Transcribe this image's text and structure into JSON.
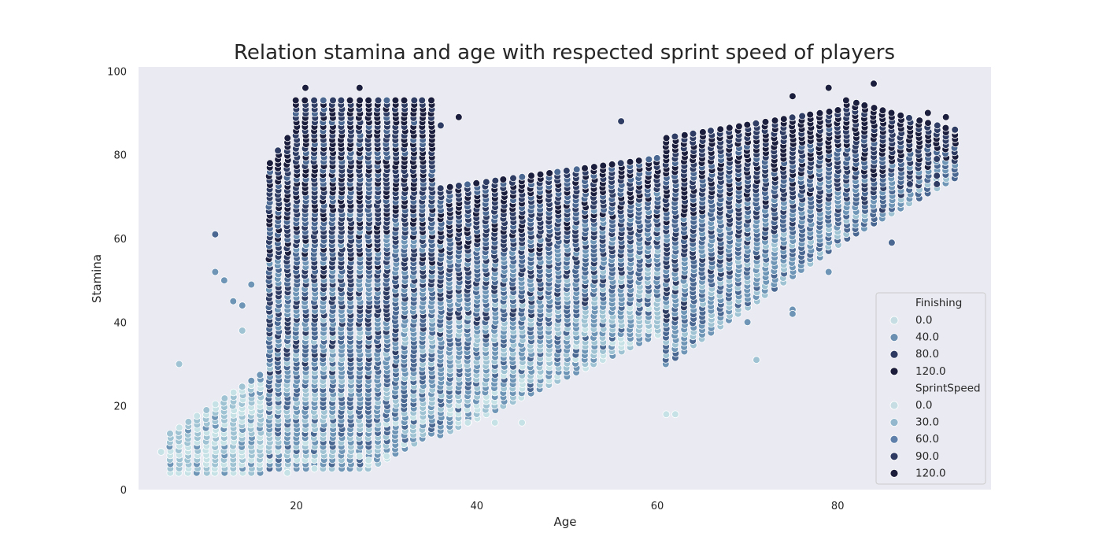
{
  "chart_data": {
    "type": "scatter",
    "title": "Relation stamina and age with respected sprint speed of players",
    "xlabel": "Age",
    "ylabel": "Stamina",
    "xlim": [
      2.5,
      97
    ],
    "ylim": [
      0,
      101
    ],
    "xticks": [
      20,
      40,
      60,
      80
    ],
    "yticks": [
      0,
      20,
      40,
      60,
      80,
      100
    ],
    "grid": false,
    "background": "#eaeaf2",
    "hue": "SprintSpeed",
    "size": "Finishing",
    "palette": [
      "#c7e2e6",
      "#9fc3d3",
      "#6f95b6",
      "#4a6892",
      "#2f3d64",
      "#1c1e3d"
    ],
    "legend": {
      "placement": "lower-right",
      "size_title": "Finishing",
      "size_entries": [
        {
          "label": "0.0",
          "color": "#c6dee3"
        },
        {
          "label": "40.0",
          "color": "#6b8fb0"
        },
        {
          "label": "80.0",
          "color": "#2e3a62"
        },
        {
          "label": "120.0",
          "color": "#1c1d3a"
        }
      ],
      "hue_title": "SprintSpeed",
      "hue_entries": [
        {
          "label": "0.0",
          "color": "#c6dee3"
        },
        {
          "label": "30.0",
          "color": "#93b7cc"
        },
        {
          "label": "60.0",
          "color": "#5f80aa"
        },
        {
          "label": "90.0",
          "color": "#2e3a62"
        },
        {
          "label": "120.0",
          "color": "#1c1d3a"
        }
      ]
    },
    "groups": [
      {
        "age_from": 6,
        "age_to": 16,
        "stamina_lo": 4,
        "stamina_hi": 25,
        "speed_level": 0.12
      },
      {
        "age_from": 17,
        "age_to": 35,
        "stamina_lo": 5,
        "stamina_hi": 94,
        "speed_level": 0.55
      },
      {
        "age_from": 36,
        "age_to": 60,
        "stamina_lo": 16,
        "stamina_hi": 82,
        "speed_level": 0.45
      },
      {
        "age_from": 61,
        "age_to": 80,
        "stamina_lo": 30,
        "stamina_hi": 96,
        "speed_level": 0.6
      },
      {
        "age_from": 81,
        "age_to": 93,
        "stamina_lo": 59,
        "stamina_hi": 97,
        "speed_level": 0.7
      }
    ],
    "outliers": [
      {
        "x": 11,
        "y": 61
      },
      {
        "x": 7,
        "y": 30
      },
      {
        "x": 11,
        "y": 52
      },
      {
        "x": 12,
        "y": 50
      },
      {
        "x": 13,
        "y": 45
      },
      {
        "x": 14,
        "y": 44
      },
      {
        "x": 14,
        "y": 38
      },
      {
        "x": 15,
        "y": 49
      },
      {
        "x": 27,
        "y": 96
      },
      {
        "x": 21,
        "y": 96
      },
      {
        "x": 84,
        "y": 97
      },
      {
        "x": 79,
        "y": 96
      },
      {
        "x": 93,
        "y": 86
      },
      {
        "x": 92,
        "y": 89
      },
      {
        "x": 90,
        "y": 90
      },
      {
        "x": 91,
        "y": 79
      },
      {
        "x": 91,
        "y": 75
      },
      {
        "x": 91,
        "y": 73
      },
      {
        "x": 88,
        "y": 73
      },
      {
        "x": 86,
        "y": 59
      },
      {
        "x": 71,
        "y": 31
      },
      {
        "x": 70,
        "y": 40
      },
      {
        "x": 61,
        "y": 18
      },
      {
        "x": 62,
        "y": 18
      },
      {
        "x": 56,
        "y": 88
      },
      {
        "x": 38,
        "y": 89
      },
      {
        "x": 36,
        "y": 87
      },
      {
        "x": 75,
        "y": 94
      },
      {
        "x": 79,
        "y": 52
      },
      {
        "x": 75,
        "y": 43
      },
      {
        "x": 75,
        "y": 42
      },
      {
        "x": 19,
        "y": 4
      },
      {
        "x": 22,
        "y": 5
      },
      {
        "x": 27,
        "y": 8
      },
      {
        "x": 28,
        "y": 7
      },
      {
        "x": 30,
        "y": 8
      },
      {
        "x": 45,
        "y": 16
      },
      {
        "x": 42,
        "y": 16
      },
      {
        "x": 39,
        "y": 16
      },
      {
        "x": 5,
        "y": 9
      }
    ]
  }
}
